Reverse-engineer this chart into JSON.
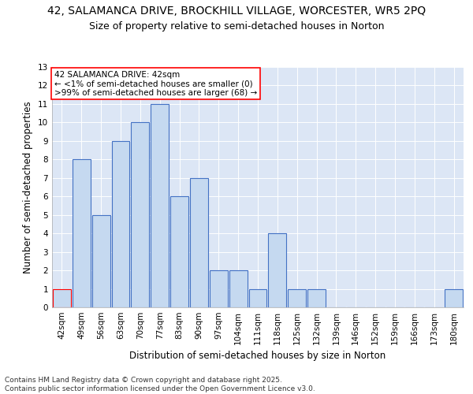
{
  "title_line1": "42, SALAMANCA DRIVE, BROCKHILL VILLAGE, WORCESTER, WR5 2PQ",
  "title_line2": "Size of property relative to semi-detached houses in Norton",
  "xlabel": "Distribution of semi-detached houses by size in Norton",
  "ylabel": "Number of semi-detached properties",
  "categories": [
    "42sqm",
    "49sqm",
    "56sqm",
    "63sqm",
    "70sqm",
    "77sqm",
    "83sqm",
    "90sqm",
    "97sqm",
    "104sqm",
    "111sqm",
    "118sqm",
    "125sqm",
    "132sqm",
    "139sqm",
    "146sqm",
    "152sqm",
    "159sqm",
    "166sqm",
    "173sqm",
    "180sqm"
  ],
  "values": [
    1,
    8,
    5,
    9,
    10,
    11,
    6,
    7,
    2,
    2,
    1,
    4,
    1,
    1,
    0,
    0,
    0,
    0,
    0,
    0,
    1
  ],
  "bar_color": "#c5d9f0",
  "bar_edge_color": "#4472c4",
  "highlight_index": 0,
  "highlight_bar_color": "#c5d9f0",
  "highlight_bar_edge_color": "#ff0000",
  "annotation_text": "42 SALAMANCA DRIVE: 42sqm\n← <1% of semi-detached houses are smaller (0)\n>99% of semi-detached houses are larger (68) →",
  "annotation_box_color": "#ffffff",
  "annotation_box_edge_color": "#ff0000",
  "ylim": [
    0,
    13
  ],
  "yticks": [
    0,
    1,
    2,
    3,
    4,
    5,
    6,
    7,
    8,
    9,
    10,
    11,
    12,
    13
  ],
  "background_color": "#dce6f5",
  "footer_line1": "Contains HM Land Registry data © Crown copyright and database right 2025.",
  "footer_line2": "Contains public sector information licensed under the Open Government Licence v3.0.",
  "title_fontsize": 10,
  "subtitle_fontsize": 9,
  "axis_label_fontsize": 8.5,
  "tick_fontsize": 7.5,
  "annotation_fontsize": 7.5,
  "footer_fontsize": 6.5
}
